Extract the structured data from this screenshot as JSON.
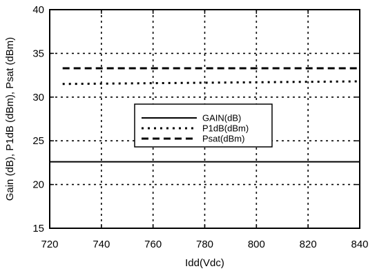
{
  "chart_data": {
    "type": "line",
    "xlabel": "Idd(Vdc)",
    "ylabel": "Gain (dB), P1dB (dBm), Psat (dBm)",
    "xlim": [
      720,
      840
    ],
    "ylim": [
      15,
      40
    ],
    "x_ticks": [
      720,
      740,
      760,
      780,
      800,
      820,
      840
    ],
    "y_ticks": [
      15,
      20,
      25,
      30,
      35,
      40
    ],
    "grid": true,
    "legend_position": "center",
    "series": [
      {
        "name": "GAIN(dB)",
        "style": "solid",
        "x": [
          720,
          840
        ],
        "y": [
          22.6,
          22.6
        ]
      },
      {
        "name": "P1dB(dBm)",
        "style": "dotted",
        "x": [
          725,
          840
        ],
        "y": [
          31.5,
          31.8
        ]
      },
      {
        "name": "Psat(dBm)",
        "style": "dashed",
        "x": [
          725,
          840
        ],
        "y": [
          33.3,
          33.3
        ]
      }
    ]
  }
}
